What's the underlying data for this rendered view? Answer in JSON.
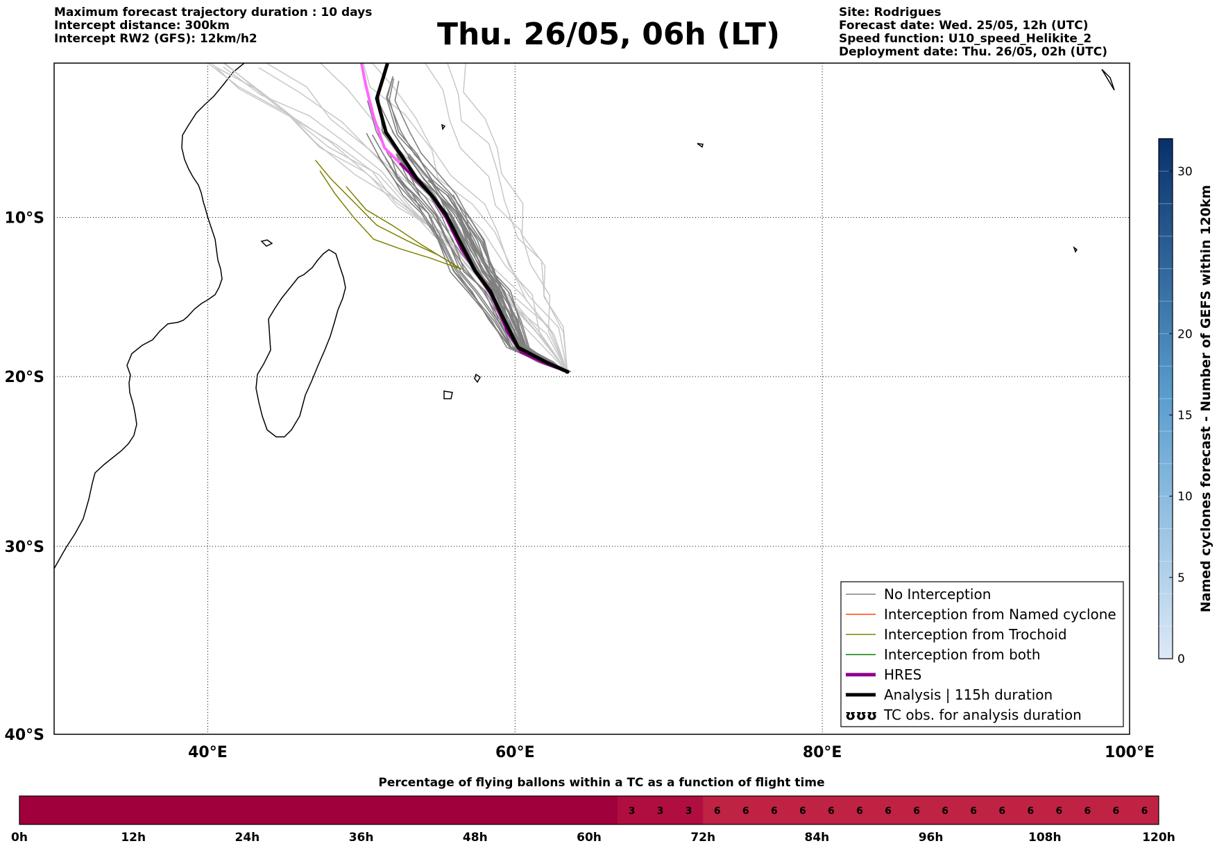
{
  "header_left": [
    "Maximum forecast trajectory duration : 10 days",
    "Intercept distance: 300km",
    "Intercept RW2 (GFS):  12km/h2"
  ],
  "title": "Thu. 26/05, 06h (LT)",
  "header_right": [
    "Site: Rodrigues",
    "Forecast date: Wed. 25/05, 12h (UTC)",
    "Speed function: U10_speed_Helikite_2",
    "Deployment date: Thu. 26/05, 02h (UTC)"
  ],
  "map": {
    "lon_range": [
      30,
      100
    ],
    "lat_range": [
      -40,
      0
    ],
    "lon_ticks": [
      {
        "value": 40,
        "label": "40°E"
      },
      {
        "value": 60,
        "label": "60°E"
      },
      {
        "value": 80,
        "label": "80°E"
      },
      {
        "value": 100,
        "label": "100°E"
      }
    ],
    "lat_ticks": [
      {
        "value": -10,
        "label": "10°S"
      },
      {
        "value": -20,
        "label": "20°S"
      },
      {
        "value": -30,
        "label": "30°S"
      },
      {
        "value": -40,
        "label": "40°S"
      }
    ],
    "site": {
      "name": "Rodrigues",
      "lon": 63.4,
      "lat": -19.7
    },
    "colors": {
      "no_interception": "#808080",
      "named": "#ff4500",
      "trochoid": "#808000",
      "both": "#008000",
      "hres": "#8b008b",
      "analysis": "#000000",
      "faint": "#c8c8c8",
      "hres_late": "#ff66ff"
    },
    "hres_track": [
      [
        63.4,
        -19.7
      ],
      [
        62,
        -19.2
      ],
      [
        60.4,
        -18.5
      ],
      [
        59.5,
        -17.2
      ],
      [
        58.5,
        -15
      ],
      [
        57.5,
        -13.5
      ],
      [
        56.5,
        -12
      ],
      [
        55.5,
        -10
      ],
      [
        54.5,
        -8.5
      ],
      [
        53.5,
        -7.5
      ],
      [
        52.5,
        -6.5
      ],
      [
        51.5,
        -5.5
      ],
      [
        50.8,
        -3.5
      ],
      [
        50.3,
        -1.5
      ],
      [
        50,
        0
      ]
    ],
    "analysis_track": [
      [
        63.4,
        -19.7
      ],
      [
        62,
        -19.1
      ],
      [
        60.2,
        -18.2
      ],
      [
        59.3,
        -16.5
      ],
      [
        58.4,
        -14.7
      ],
      [
        57.4,
        -13.4
      ],
      [
        56.4,
        -11.5
      ],
      [
        55.5,
        -9.8
      ],
      [
        54.6,
        -8.6
      ],
      [
        53.6,
        -7.5
      ],
      [
        52.6,
        -6
      ],
      [
        51.6,
        -4.5
      ],
      [
        51,
        -2.3
      ],
      [
        51.4,
        -1
      ],
      [
        51.7,
        0
      ]
    ],
    "trochoid_tracks": [
      [
        [
          56.5,
          -13.3
        ],
        [
          55,
          -12.4
        ],
        [
          53,
          -11.5
        ],
        [
          51,
          -10.5
        ],
        [
          49.5,
          -9
        ],
        [
          48,
          -7.5
        ],
        [
          47,
          -6.3
        ]
      ],
      [
        [
          56.5,
          -13.3
        ],
        [
          54.5,
          -12.6
        ],
        [
          52.5,
          -12
        ],
        [
          50.8,
          -11.4
        ],
        [
          49.5,
          -10
        ],
        [
          48.3,
          -8.5
        ],
        [
          47.3,
          -7
        ]
      ],
      [
        [
          56.5,
          -13.3
        ],
        [
          54,
          -11.8
        ],
        [
          52,
          -10.5
        ],
        [
          50.3,
          -9.5
        ],
        [
          49,
          -8
        ]
      ]
    ]
  },
  "legend": [
    {
      "label": "No Interception",
      "style": "thin",
      "color": "#808080"
    },
    {
      "label": "Interception from Named cyclone",
      "style": "thin",
      "color": "#ff4500"
    },
    {
      "label": "Interception from Trochoid",
      "style": "thin",
      "color": "#808000"
    },
    {
      "label": "Interception from both",
      "style": "thin",
      "color": "#008000"
    },
    {
      "label": "HRES",
      "style": "thick",
      "color": "#8b008b"
    },
    {
      "label": "Analysis | 115h duration",
      "style": "thick",
      "color": "#000000"
    },
    {
      "label": "TC obs. for analysis duration",
      "style": "symbol",
      "color": "#000000"
    }
  ],
  "colorbar": {
    "label": "Named cyclones forecast - Number of GEFS within 120km",
    "min": 0,
    "max": 32,
    "ticks": [
      0,
      5,
      10,
      15,
      20,
      30
    ],
    "color_low": "#dce9f7",
    "color_high": "#08306b"
  },
  "timeline": {
    "title": "Percentage of flying ballons within a TC as a function of flight time",
    "max_hours": 120,
    "step_hours": 3,
    "ticks": [
      "0h",
      "12h",
      "24h",
      "36h",
      "48h",
      "60h",
      "72h",
      "84h",
      "96h",
      "108h",
      "120h"
    ],
    "values": [
      0,
      0,
      0,
      0,
      0,
      0,
      0,
      0,
      0,
      0,
      0,
      0,
      0,
      0,
      0,
      0,
      0,
      0,
      0,
      0,
      0,
      3,
      3,
      3,
      6,
      6,
      6,
      6,
      6,
      6,
      6,
      6,
      6,
      6,
      6,
      6,
      6,
      6,
      6,
      6
    ],
    "colors": {
      "0": "#a0003c",
      "3": "#b00e40",
      "6": "#c02244"
    }
  }
}
